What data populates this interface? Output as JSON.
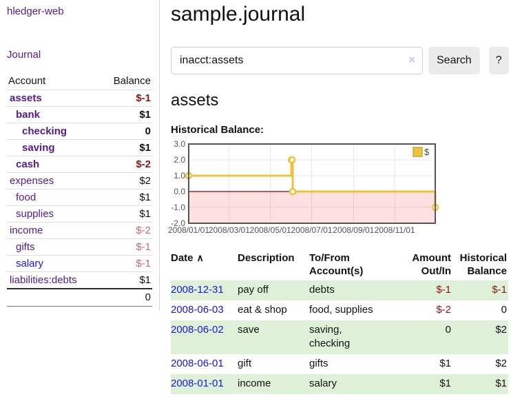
{
  "app": {
    "brand": "hledger-web",
    "nav_journal": "Journal"
  },
  "sidebar": {
    "accounts_table": {
      "col_account": "Account",
      "col_balance": "Balance",
      "rows": [
        {
          "label": "assets",
          "value": "$-1",
          "level": 1,
          "bold": true,
          "value_class": "neg",
          "link_color": "purple"
        },
        {
          "label": "bank",
          "value": "$1",
          "level": 2,
          "bold": true,
          "value_class": "pos",
          "link_color": "purple"
        },
        {
          "label": "checking",
          "value": "0",
          "level": 3,
          "bold": true,
          "value_class": "pos",
          "link_color": "purple"
        },
        {
          "label": "saving",
          "value": "$1",
          "level": 3,
          "bold": true,
          "value_class": "pos",
          "link_color": "purple"
        },
        {
          "label": "cash",
          "value": "$-2",
          "level": 2,
          "bold": true,
          "value_class": "neg",
          "link_color": "purple"
        },
        {
          "label": "expenses",
          "value": "$2",
          "level": 1,
          "bold": false,
          "value_class": "pos",
          "link_color": "purple"
        },
        {
          "label": "food",
          "value": "$1",
          "level": 2,
          "bold": false,
          "value_class": "pos",
          "link_color": "purple"
        },
        {
          "label": "supplies",
          "value": "$1",
          "level": 2,
          "bold": false,
          "value_class": "pos",
          "link_color": "purple"
        },
        {
          "label": "income",
          "value": "$-2",
          "level": 1,
          "bold": false,
          "value_class": "neg-muted",
          "link_color": "purple"
        },
        {
          "label": "gifts",
          "value": "$-1",
          "level": 2,
          "bold": false,
          "value_class": "neg-muted",
          "link_color": "purple"
        },
        {
          "label": "salary",
          "value": "$-1",
          "level": 2,
          "bold": false,
          "value_class": "neg-muted",
          "link_color": "blue"
        },
        {
          "label": "liabilities:debts",
          "value": "$1",
          "level": 1,
          "bold": false,
          "value_class": "pos",
          "link_color": "purple"
        }
      ],
      "total": "0"
    }
  },
  "main": {
    "title": "sample.journal",
    "search": {
      "value": "inacct:assets",
      "clear_icon": "×",
      "search_button": "Search",
      "help_button": "?"
    },
    "account_heading": "assets",
    "chart_title": "Historical Balance:"
  },
  "chart_data": {
    "type": "line",
    "style": "step",
    "title": "Historical Balance",
    "x_range": [
      "2008/01/01",
      "2008/12/31"
    ],
    "ylim": [
      -2,
      3
    ],
    "y_ticks": [
      "3.0",
      "2.0",
      "1.0",
      "0.0",
      "-1.0",
      "-2.0"
    ],
    "x_ticks": [
      "2008/01/01",
      "2008/03/01",
      "2008/05/01",
      "2008/07/01",
      "2008/09/01",
      "2008/11/01"
    ],
    "series": [
      {
        "name": "$",
        "color": "#edc240",
        "points": [
          [
            "2008/01/01",
            1
          ],
          [
            "2008/06/01",
            2
          ],
          [
            "2008/06/02",
            2
          ],
          [
            "2008/06/03",
            0
          ],
          [
            "2008/12/31",
            -1
          ]
        ]
      }
    ],
    "grid": true,
    "legend_position": "top-right",
    "zero_line_color": "#8b0000",
    "negative_region_color": "rgba(255,0,0,0.12)",
    "plot_border_color": "#545454",
    "tick_label_color": "#545454"
  },
  "register": {
    "headers": {
      "date": "Date",
      "sort_icon": "∧",
      "description": "Description",
      "accounts": "To/From Account(s)",
      "amount": "Amount Out/In",
      "balance": "Historical Balance"
    },
    "rows": [
      {
        "date": "2008-12-31",
        "description": "pay off",
        "accounts": "debts",
        "amount": "$-1",
        "amount_class": "neg",
        "balance": "$-1",
        "balance_class": "neg"
      },
      {
        "date": "2008-06-03",
        "description": "eat & shop",
        "accounts": "food, supplies",
        "amount": "$-2",
        "amount_class": "neg",
        "balance": "0",
        "balance_class": "pos"
      },
      {
        "date": "2008-06-02",
        "description": "save",
        "accounts": "saving,\nchecking",
        "amount": "0",
        "amount_class": "pos",
        "balance": "$2",
        "balance_class": "pos"
      },
      {
        "date": "2008-06-01",
        "description": "gift",
        "accounts": "gifts",
        "amount": "$1",
        "amount_class": "pos",
        "balance": "$2",
        "balance_class": "pos"
      },
      {
        "date": "2008-01-01",
        "description": "income",
        "accounts": "salary",
        "amount": "$1",
        "amount_class": "pos",
        "balance": "$1",
        "balance_class": "pos"
      }
    ]
  }
}
